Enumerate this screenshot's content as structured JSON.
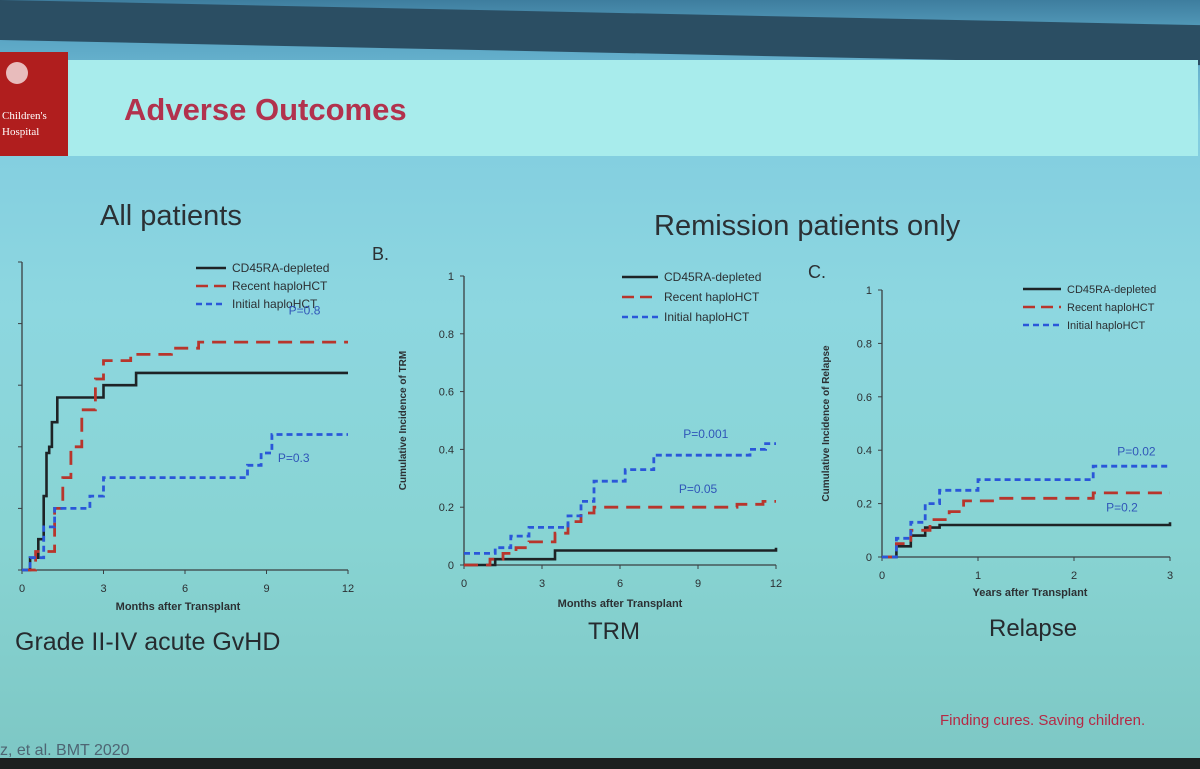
{
  "slide": {
    "logo": {
      "line1": "Children's",
      "line2": "Hospital",
      "icon": "child-silhouette-icon"
    },
    "title": "Adverse Outcomes",
    "subtitle_left": "All patients",
    "subtitle_right": "Remission patients only",
    "tagline": "Finding cures. Saving children.",
    "citation": "z, et al. BMT 2020",
    "panel_a_label": "Grade II-IV acute GvHD",
    "panel_b_label": "TRM",
    "panel_c_label": "Relapse",
    "panel_b_letter": "B.",
    "panel_c_letter": "C."
  },
  "colors": {
    "cd45ra": "#1e2326",
    "recent": "#b8352c",
    "initial": "#2a57d9",
    "title": "#b2324d"
  },
  "chart_data": [
    {
      "id": "a",
      "type": "line",
      "xlabel": "Months after Transplant",
      "ylabel": "",
      "xlim": [
        0,
        12
      ],
      "ylim": [
        0,
        0.5
      ],
      "xticks": [
        0,
        3,
        6,
        9,
        12
      ],
      "yticks": [],
      "legend_position": "top-right",
      "series": [
        {
          "name": "CD45RA-depleted",
          "style": "solid",
          "x": [
            0,
            0.3,
            0.6,
            0.8,
            0.9,
            1.0,
            1.1,
            1.3,
            3.0,
            4.2,
            12
          ],
          "y": [
            0,
            0.02,
            0.05,
            0.12,
            0.19,
            0.2,
            0.24,
            0.28,
            0.3,
            0.32,
            0.32
          ]
        },
        {
          "name": "Recent haploHCT",
          "style": "dash",
          "x": [
            0,
            0.5,
            1.2,
            1.5,
            1.8,
            2.2,
            2.7,
            3.0,
            4.0,
            5.5,
            6.5,
            12
          ],
          "y": [
            0,
            0.03,
            0.1,
            0.15,
            0.2,
            0.26,
            0.31,
            0.34,
            0.35,
            0.36,
            0.37,
            0.37
          ]
        },
        {
          "name": "Initial haploHCT",
          "style": "dash",
          "x": [
            0,
            0.3,
            0.8,
            1.2,
            2.5,
            3.0,
            8.3,
            8.8,
            9.2,
            12
          ],
          "y": [
            0,
            0.02,
            0.07,
            0.1,
            0.12,
            0.15,
            0.17,
            0.19,
            0.22,
            0.22
          ]
        }
      ],
      "annotations": [
        {
          "text": "P=0.8",
          "x": 10.4,
          "y": 0.415
        },
        {
          "text": "P=0.3",
          "x": 10.0,
          "y": 0.175
        }
      ]
    },
    {
      "id": "b",
      "type": "line",
      "xlabel": "Months after Transplant",
      "ylabel": "Cumulative Incidence of TRM",
      "xlim": [
        0,
        12
      ],
      "ylim": [
        0,
        1
      ],
      "xticks": [
        0,
        3,
        6,
        9,
        12
      ],
      "yticks": [
        0,
        0.2,
        0.4,
        0.6,
        0.8,
        1
      ],
      "legend_position": "top-right",
      "series": [
        {
          "name": "CD45RA-depleted",
          "style": "solid",
          "x": [
            0,
            1.2,
            3.5,
            12
          ],
          "y": [
            0,
            0.02,
            0.05,
            0.06
          ]
        },
        {
          "name": "Recent haploHCT",
          "style": "dash",
          "x": [
            0,
            1.0,
            1.5,
            2.0,
            2.5,
            3.5,
            4.0,
            4.5,
            5.0,
            10.5,
            11.5,
            12
          ],
          "y": [
            0,
            0.02,
            0.04,
            0.06,
            0.08,
            0.11,
            0.15,
            0.18,
            0.2,
            0.21,
            0.22,
            0.22
          ]
        },
        {
          "name": "Initial haploHCT",
          "style": "dash",
          "x": [
            0,
            1.2,
            1.8,
            2.5,
            4.0,
            4.5,
            5.0,
            6.2,
            7.3,
            11.0,
            11.6,
            12
          ],
          "y": [
            0.04,
            0.06,
            0.1,
            0.13,
            0.17,
            0.22,
            0.29,
            0.33,
            0.38,
            0.4,
            0.42,
            0.42
          ]
        }
      ],
      "annotations": [
        {
          "text": "P=0.001",
          "x": 9.3,
          "y": 0.44
        },
        {
          "text": "P=0.05",
          "x": 9.0,
          "y": 0.25
        }
      ]
    },
    {
      "id": "c",
      "type": "line",
      "xlabel": "Years after Transplant",
      "ylabel": "Cumulative Incidence of Relapse",
      "xlim": [
        0,
        3
      ],
      "ylim": [
        0,
        1
      ],
      "xticks": [
        0,
        1,
        2,
        3
      ],
      "yticks": [
        0,
        0.2,
        0.4,
        0.6,
        0.8,
        1
      ],
      "legend_position": "top-right",
      "series": [
        {
          "name": "CD45RA-depleted",
          "style": "solid",
          "x": [
            0,
            0.15,
            0.3,
            0.45,
            0.6,
            3
          ],
          "y": [
            0,
            0.04,
            0.08,
            0.11,
            0.12,
            0.13
          ]
        },
        {
          "name": "Recent haploHCT",
          "style": "dash",
          "x": [
            0,
            0.15,
            0.3,
            0.5,
            0.7,
            0.85,
            1.2,
            2.2,
            3
          ],
          "y": [
            0,
            0.05,
            0.1,
            0.14,
            0.17,
            0.21,
            0.22,
            0.24,
            0.24
          ]
        },
        {
          "name": "Initial haploHCT",
          "style": "dash",
          "x": [
            0,
            0.15,
            0.3,
            0.45,
            0.6,
            1.0,
            2.2,
            3
          ],
          "y": [
            0,
            0.07,
            0.13,
            0.2,
            0.25,
            0.29,
            0.34,
            0.34
          ]
        }
      ],
      "annotations": [
        {
          "text": "P=0.02",
          "x": 2.65,
          "y": 0.38
        },
        {
          "text": "P=0.2",
          "x": 2.5,
          "y": 0.17
        }
      ]
    }
  ]
}
